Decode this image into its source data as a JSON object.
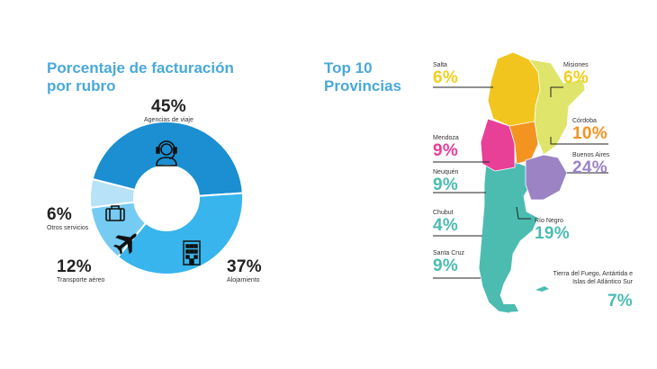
{
  "left_title": [
    "Porcentaje de facturación",
    "por rubro"
  ],
  "right_title": [
    "Top 10",
    "Provincias"
  ],
  "chart_data": [
    {
      "type": "pie",
      "title": "Porcentaje de facturación por rubro",
      "slices": [
        {
          "label": "Agencias de viaje",
          "value": 45,
          "display": "45%",
          "color": "#1b8fd2",
          "icon": "call-center-agent-icon"
        },
        {
          "label": "Alojamiento",
          "value": 37,
          "display": "37%",
          "color": "#37b5ec",
          "icon": "building-icon"
        },
        {
          "label": "Transporte aéreo",
          "value": 12,
          "display": "12%",
          "color": "#75cbf2",
          "icon": "airplane-icon"
        },
        {
          "label": "Otros servicios",
          "value": 6,
          "display": "6%",
          "color": "#b7e2f7",
          "icon": "suitcase-icon"
        }
      ]
    },
    {
      "type": "table",
      "title": "Top 10 Provincias",
      "rows": [
        {
          "label": "Salta",
          "value": 6,
          "display": "6%",
          "color": "#f2cf1d"
        },
        {
          "label": "Misiones",
          "value": 6,
          "display": "6%",
          "color": "#f2cf1d"
        },
        {
          "label": "Córdoba",
          "value": 10,
          "display": "10%",
          "color": "#f39421"
        },
        {
          "label": "Mendoza",
          "value": 9,
          "display": "9%",
          "color": "#e83f97"
        },
        {
          "label": "Buenos Aires",
          "value": 24,
          "display": "24%",
          "color": "#9b83c4"
        },
        {
          "label": "Neuquén",
          "value": 9,
          "display": "9%",
          "color": "#4cbcb1"
        },
        {
          "label": "Chubut",
          "value": 4,
          "display": "4%",
          "color": "#4cbcb1"
        },
        {
          "label": "Río Negro",
          "value": 19,
          "display": "19%",
          "color": "#4cbcb1"
        },
        {
          "label": "Santa Cruz",
          "value": 9,
          "display": "9%",
          "color": "#4cbcb1"
        },
        {
          "label": "Tierra del Fuego, Antártida e Islas del Atlántico Sur",
          "value": 7,
          "display": "7%",
          "color": "#4cbcb1"
        }
      ]
    }
  ],
  "region_colors": {
    "north": "#f2c51e",
    "northeast": "#dfe56b",
    "cuyo": "#e83f97",
    "cordoba": "#f39421",
    "buenos_aires": "#9b83c4",
    "patagonia": "#4cbcb1",
    "leader": "#222222"
  }
}
